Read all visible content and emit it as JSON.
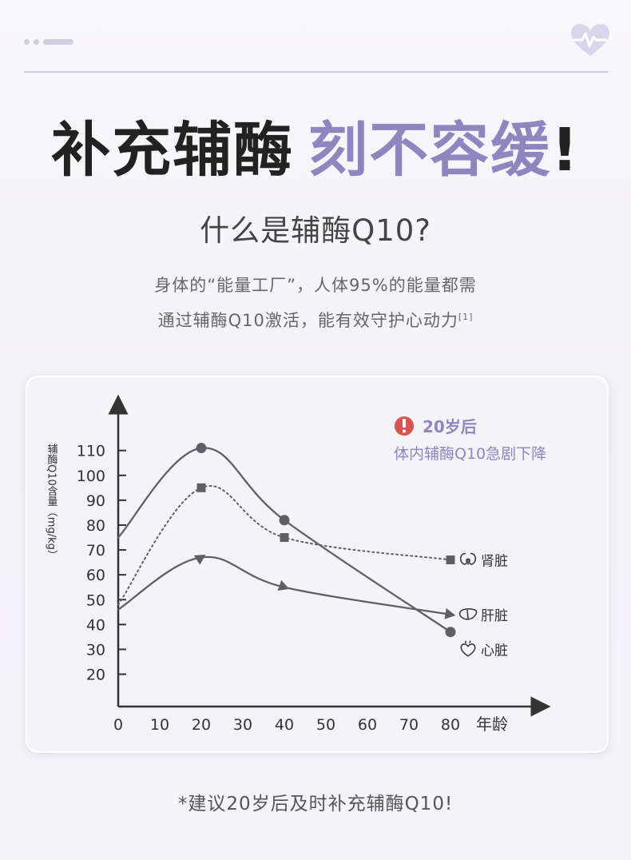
{
  "header": {
    "logo_icon": "heartbeat-heart-icon",
    "accent_color": "#8f86bf"
  },
  "headline": {
    "part1": "补充辅酶",
    "part2": "刻不容缓",
    "bang": "!"
  },
  "subtitle": "什么是辅酶Q10?",
  "intro": {
    "line1": "身体的“能量工厂”，人体95%的能量都需",
    "line2": "通过辅酶Q10激活，能有效守护心动力",
    "ref": "[1]"
  },
  "callout": {
    "icon": "exclamation-circle-icon",
    "title": "20岁后",
    "text": "体内辅酶Q10急剧下降"
  },
  "chart_data": {
    "type": "line",
    "ylabel": "辅酶Q10含量（mg/kg）",
    "xlabel": "年龄",
    "x_ticks": [
      0,
      10,
      20,
      30,
      40,
      50,
      60,
      70,
      80
    ],
    "y_ticks": [
      20,
      30,
      40,
      50,
      60,
      70,
      80,
      90,
      100,
      110
    ],
    "xlim": [
      0,
      100
    ],
    "ylim": [
      7,
      130
    ],
    "series": [
      {
        "name": "肾脏",
        "icon": "kidney-icon",
        "marker": "square",
        "style": "dotted",
        "points": [
          [
            0,
            48
          ],
          [
            20,
            95
          ],
          [
            40,
            75
          ],
          [
            80,
            66
          ]
        ]
      },
      {
        "name": "肝脏",
        "icon": "liver-icon",
        "marker": "triangle",
        "style": "solid",
        "points": [
          [
            0,
            46
          ],
          [
            20,
            67
          ],
          [
            40,
            55
          ],
          [
            80,
            44
          ]
        ]
      },
      {
        "name": "心脏",
        "icon": "heart-icon",
        "marker": "circle",
        "style": "solid",
        "points": [
          [
            0,
            75
          ],
          [
            20,
            111
          ],
          [
            40,
            82
          ],
          [
            80,
            37
          ]
        ]
      }
    ]
  },
  "footnote": "*建议20岁后及时补充辅酶Q10!"
}
